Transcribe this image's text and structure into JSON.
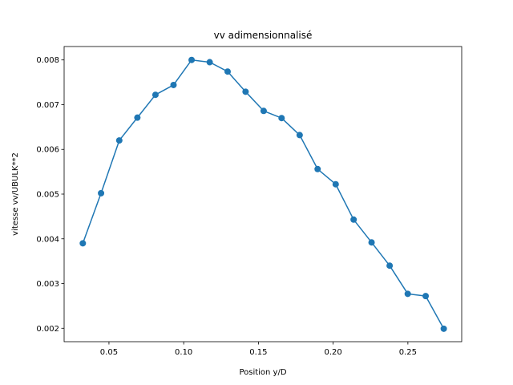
{
  "chart_data": {
    "type": "line",
    "title": "vv adimensionnalisé",
    "xlabel": "Position y/D",
    "ylabel": "vitesse vv/UBULK**2",
    "xlim": [
      0.02,
      0.286
    ],
    "ylim": [
      0.0017,
      0.0083
    ],
    "xticks": [
      0.05,
      0.1,
      0.15,
      0.2,
      0.25
    ],
    "xtick_labels": [
      "0.05",
      "0.10",
      "0.15",
      "0.20",
      "0.25"
    ],
    "yticks": [
      0.002,
      0.003,
      0.004,
      0.005,
      0.006,
      0.007,
      0.008
    ],
    "ytick_labels": [
      "0.002",
      "0.003",
      "0.004",
      "0.005",
      "0.006",
      "0.007",
      "0.008"
    ],
    "grid": false,
    "legend": false,
    "series": [
      {
        "color": "#1f77b4",
        "marker": "circle",
        "x": [
          0.0325,
          0.0447,
          0.0569,
          0.069,
          0.0811,
          0.0932,
          0.1053,
          0.1174,
          0.1294,
          0.1414,
          0.1535,
          0.1655,
          0.1776,
          0.1896,
          0.2017,
          0.2137,
          0.2257,
          0.2378,
          0.2499,
          0.2619,
          0.274
        ],
        "y": [
          0.0039,
          0.00502,
          0.0062,
          0.00671,
          0.00722,
          0.00744,
          0.008,
          0.00795,
          0.00774,
          0.00729,
          0.00686,
          0.0067,
          0.00632,
          0.00556,
          0.00522,
          0.00443,
          0.00392,
          0.0034,
          0.00277,
          0.00272,
          0.00199
        ]
      }
    ]
  }
}
